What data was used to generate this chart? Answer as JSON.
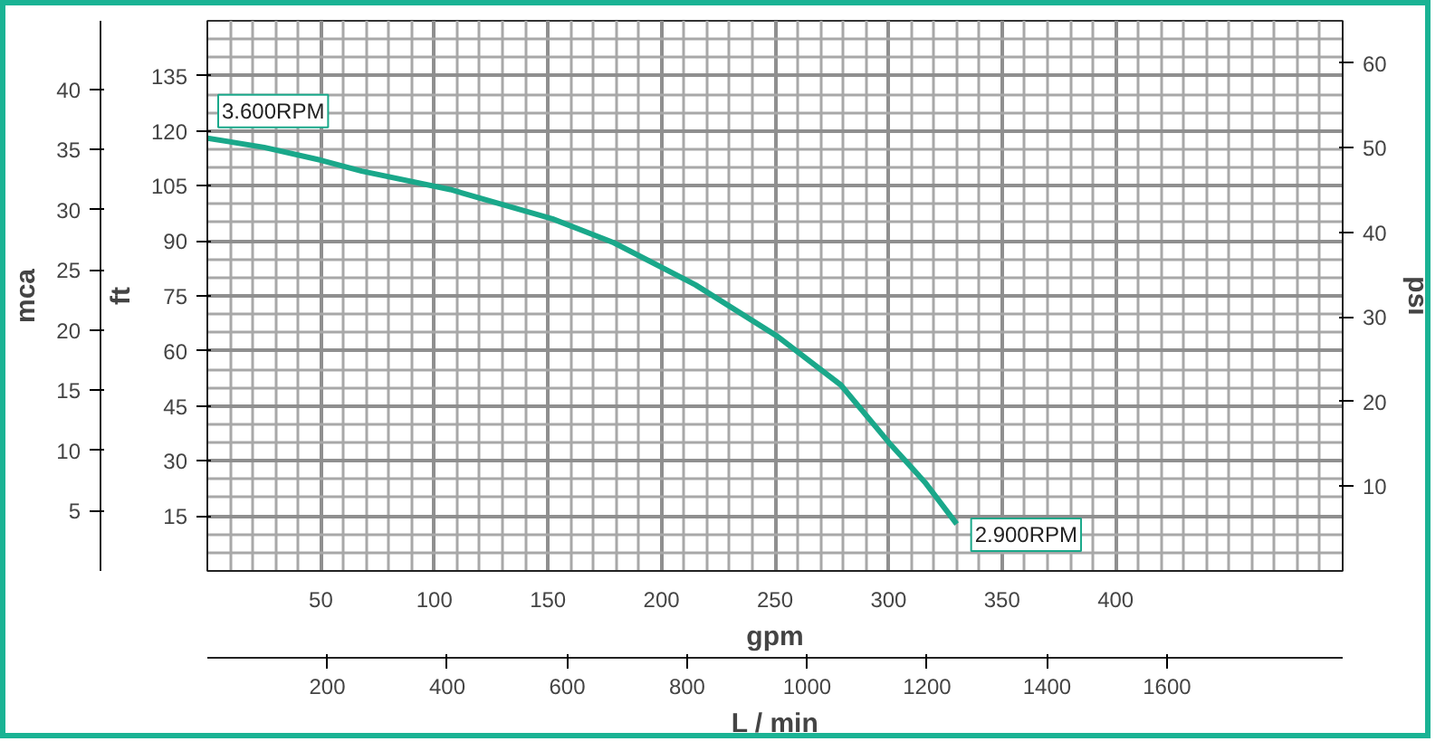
{
  "chart_data": {
    "type": "line",
    "xlabel": "gpm",
    "ylabel": "ft",
    "y2label": "mca",
    "y3label": "psi",
    "x2label": "L / min",
    "x": [
      0,
      25,
      50,
      68,
      107,
      152,
      179,
      215,
      251,
      279,
      301,
      316,
      330
    ],
    "series": [
      {
        "color": "#1aa88a",
        "values": [
          118,
          115.5,
          112,
          109,
          104,
          96,
          89.5,
          78,
          64,
          50.7,
          34.4,
          24.2,
          12.8
        ]
      }
    ],
    "xlim": [
      0,
      500
    ],
    "xticks": [
      50,
      100,
      150,
      200,
      250,
      300,
      350,
      400
    ],
    "x2lim": [
      0,
      1893
    ],
    "x2ticks": [
      200,
      400,
      600,
      800,
      1000,
      1200,
      1400,
      1600
    ],
    "ylim": [
      0,
      150
    ],
    "yticks": [
      15,
      30,
      45,
      60,
      75,
      90,
      105,
      120,
      135
    ],
    "y2lim": [
      0,
      45.7
    ],
    "y2ticks": [
      5,
      10,
      15,
      20,
      25,
      30,
      35,
      40
    ],
    "y3lim": [
      0,
      65
    ],
    "y3ticks": [
      10,
      20,
      30,
      40,
      50,
      60
    ],
    "annotations": [
      {
        "text": "3.600RPM",
        "x": 0,
        "y": 118
      },
      {
        "text": "2.900RPM",
        "x": 330,
        "y": 12.8
      }
    ],
    "grid": true,
    "marker": "none",
    "line_style": "solid"
  }
}
